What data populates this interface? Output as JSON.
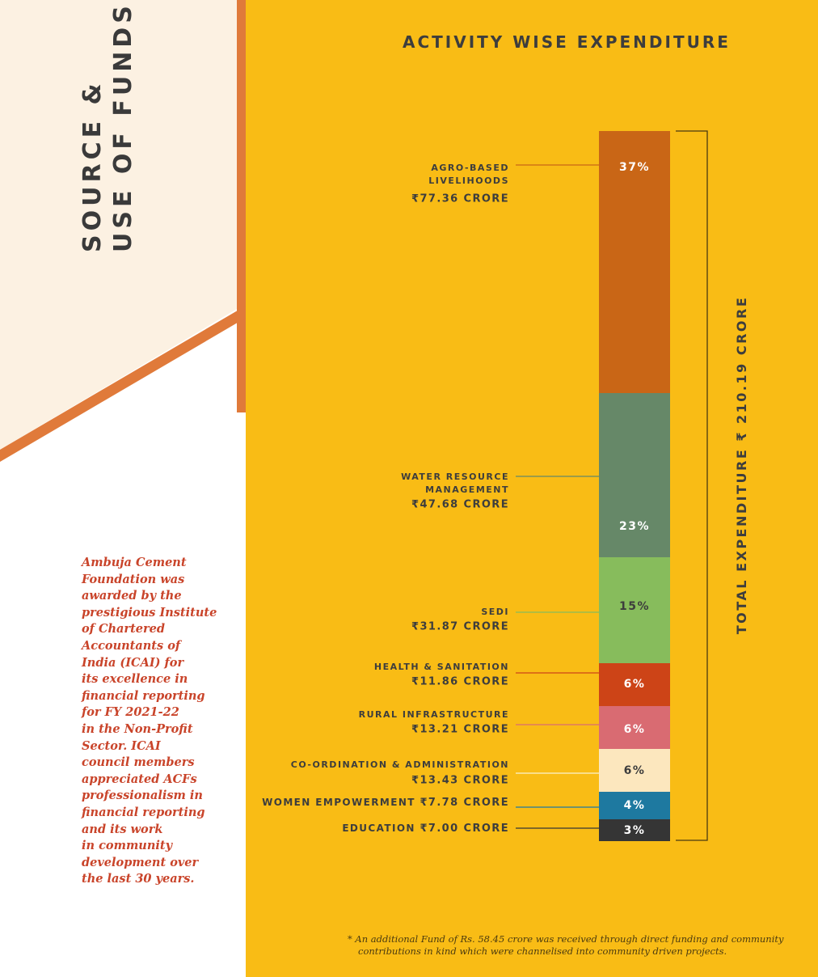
{
  "side_title": {
    "line1": "SOURCE &",
    "line2": "USE OF FUNDS"
  },
  "award_lines": [
    "Ambuja Cement",
    "Foundation was",
    "awarded by the",
    "prestigious Institute",
    "of Chartered",
    "Accountants of",
    "India (ICAI) for",
    "its excellence in",
    "financial reporting",
    "for FY 2021-22",
    "in the Non-Profit",
    "Sector. ICAI",
    "council members",
    "appreciated ACFs",
    "professionalism in",
    "financial reporting",
    "and its work",
    "in community",
    "development over",
    "the last 30 years."
  ],
  "colors": {
    "background": "#f9bc15",
    "accent": "#e07a3a",
    "cream": "#fcf1e2"
  },
  "footnote": {
    "line1": "* An additional Fund of Rs. 58.45 crore was received through direct funding and community",
    "line2": "contributions in kind which were channelised into community driven projects."
  },
  "chart_data": {
    "type": "bar",
    "stacked": true,
    "title": "ACTIVITY WISE EXPENDITURE",
    "total_label": "TOTAL EXPENDITURE",
    "total_value": "₹ 210.19 CRORE",
    "total": 210.19,
    "unit": "crore",
    "segments": [
      {
        "label": [
          "AGRO-BASED",
          "LIVELIHOODS"
        ],
        "amount_text": "₹77.36 CRORE",
        "value": 77.36,
        "pct": 37,
        "pct_label": "37%",
        "color": "#c96616",
        "text_color": "#ffffff"
      },
      {
        "label": [
          "WATER RESOURCE",
          "MANAGEMENT"
        ],
        "amount_text": "₹47.68 CRORE",
        "value": 47.68,
        "pct": 23,
        "pct_label": "23%",
        "color": "#668868",
        "text_color": "#ffffff"
      },
      {
        "label": [
          "SEDI"
        ],
        "amount_text": "₹31.87 CRORE",
        "value": 31.87,
        "pct": 15,
        "pct_label": "15%",
        "color": "#87bc5c",
        "text_color": "#3d3d3d"
      },
      {
        "label": [
          "HEALTH & SANITATION"
        ],
        "amount_text": "₹11.86 CRORE",
        "value": 11.86,
        "pct": 6,
        "pct_label": "6%",
        "color": "#cd4417",
        "text_color": "#ffffff"
      },
      {
        "label": [
          "RURAL INFRASTRUCTURE"
        ],
        "amount_text": "₹13.21 CRORE",
        "value": 13.21,
        "pct": 6,
        "pct_label": "6%",
        "color": "#d96b72",
        "text_color": "#ffffff"
      },
      {
        "label": [
          "CO-ORDINATION & ADMINISTRATION"
        ],
        "amount_text": "₹13.43 CRORE",
        "value": 13.43,
        "pct": 6,
        "pct_label": "6%",
        "color": "#fce7be",
        "text_color": "#3d3d3d"
      },
      {
        "label": [
          "WOMEN EMPOWERMENT"
        ],
        "amount_text": "₹7.78 CRORE",
        "value": 7.78,
        "pct": 4,
        "pct_label": "4%",
        "color": "#1e79a0",
        "text_color": "#ffffff",
        "inline": true
      },
      {
        "label": [
          "EDUCATION"
        ],
        "amount_text": "₹7.00 CRORE",
        "value": 7.0,
        "pct": 3,
        "pct_label": "3%",
        "color": "#353535",
        "text_color": "#ffffff",
        "inline": true
      }
    ]
  }
}
